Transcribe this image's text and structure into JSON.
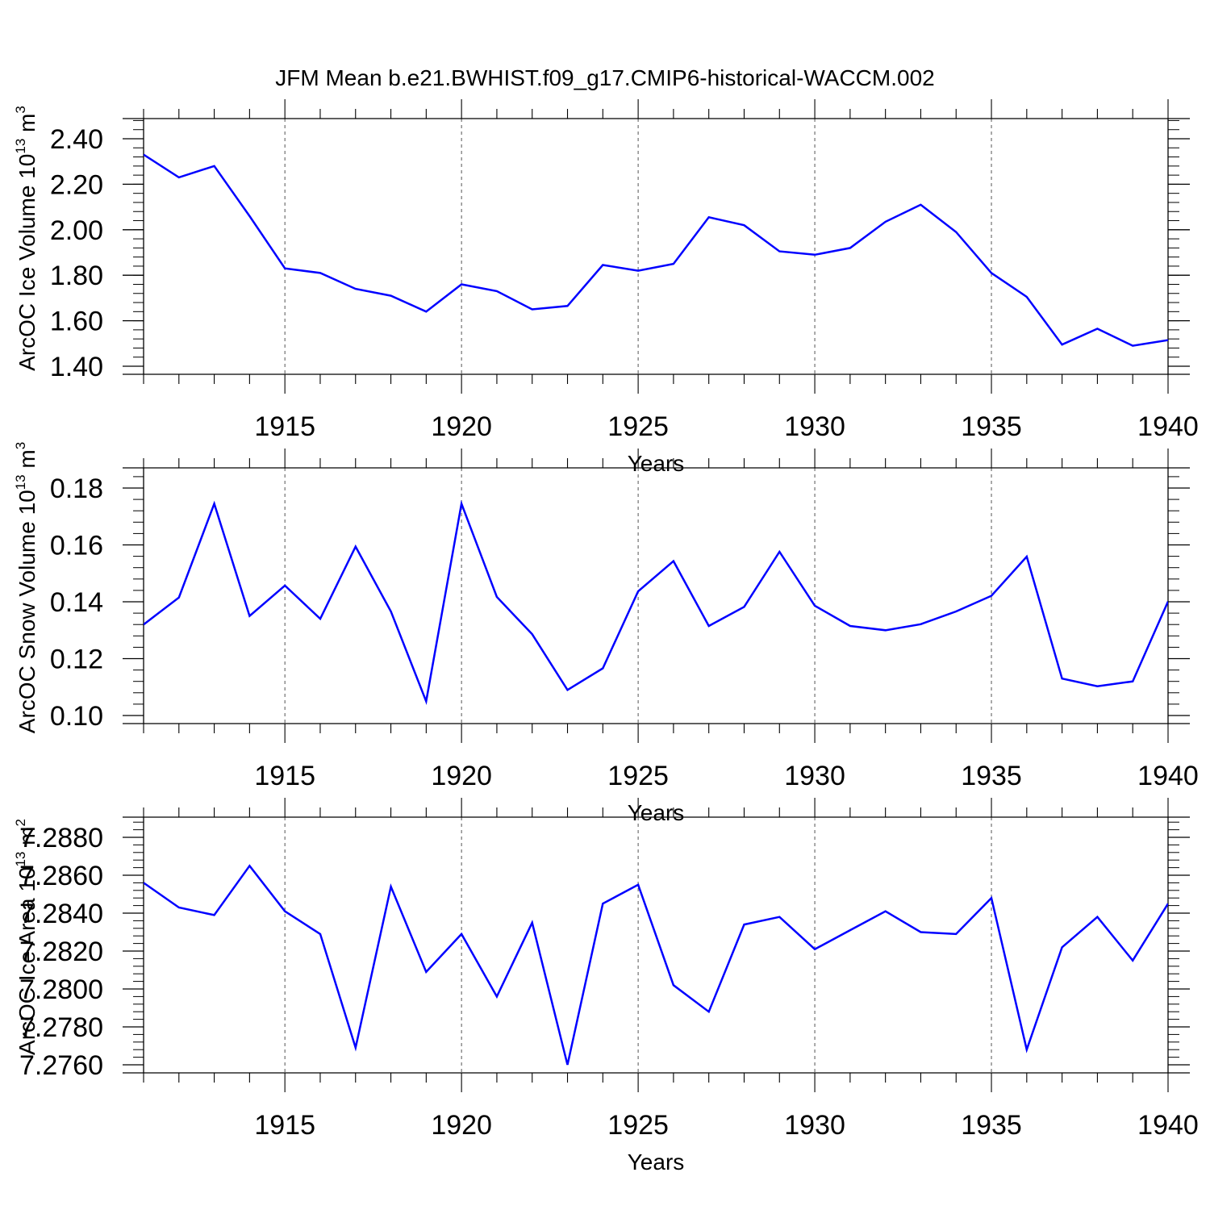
{
  "title": "JFM Mean b.e21.BWHIST.f09_g17.CMIP6-historical-WACCM.002",
  "chart_data": [
    {
      "type": "line",
      "xlabel": "Years",
      "ylabel": "ArcOC Ice Volume 10",
      "ylabel_exp": "13",
      "ylabel_unit": "m",
      "ylabel_unit_exp": "3",
      "xlim": [
        1911,
        1940
      ],
      "ylim": [
        1.4,
        2.4
      ],
      "y_major_ticks": [
        1.4,
        1.6,
        1.8,
        2.0,
        2.2,
        2.4
      ],
      "y_tick_labels": [
        "1.40",
        "1.60",
        "1.80",
        "2.00",
        "2.20",
        "2.40"
      ],
      "x_major_ticks": [
        1915,
        1920,
        1925,
        1930,
        1935,
        1940
      ],
      "x_tick_labels": [
        "1915",
        "1920",
        "1925",
        "1930",
        "1935",
        "1940"
      ],
      "grid": "vertical dashed at major x ticks",
      "line_color": "#0000ff",
      "x": [
        1911,
        1912,
        1913,
        1914,
        1915,
        1916,
        1917,
        1918,
        1919,
        1920,
        1921,
        1922,
        1923,
        1924,
        1925,
        1926,
        1927,
        1928,
        1929,
        1930,
        1931,
        1932,
        1933,
        1934,
        1935,
        1936,
        1937,
        1938,
        1939,
        1940
      ],
      "values": [
        2.33,
        2.23,
        2.28,
        2.06,
        1.83,
        1.81,
        1.74,
        1.71,
        1.64,
        1.76,
        1.73,
        1.65,
        1.665,
        1.845,
        1.82,
        1.85,
        2.055,
        2.02,
        1.905,
        1.89,
        1.92,
        2.035,
        2.11,
        1.99,
        1.81,
        1.705,
        1.495,
        1.565,
        1.49,
        1.515
      ]
    },
    {
      "type": "line",
      "xlabel": "Years",
      "ylabel": "ArcOC Snow Volume 10",
      "ylabel_exp": "13",
      "ylabel_unit": "m",
      "ylabel_unit_exp": "3",
      "xlim": [
        1911,
        1940
      ],
      "ylim": [
        0.1,
        0.18
      ],
      "y_major_ticks": [
        0.1,
        0.12,
        0.14,
        0.16,
        0.18
      ],
      "y_tick_labels": [
        "0.10",
        "0.12",
        "0.14",
        "0.16",
        "0.18"
      ],
      "x_major_ticks": [
        1915,
        1920,
        1925,
        1930,
        1935,
        1940
      ],
      "x_tick_labels": [
        "1915",
        "1920",
        "1925",
        "1930",
        "1935",
        "1940"
      ],
      "grid": "vertical dashed at major x ticks",
      "line_color": "#0000ff",
      "x": [
        1911,
        1912,
        1913,
        1914,
        1915,
        1916,
        1917,
        1918,
        1919,
        1920,
        1921,
        1922,
        1923,
        1924,
        1925,
        1926,
        1927,
        1928,
        1929,
        1930,
        1931,
        1932,
        1933,
        1934,
        1935,
        1936,
        1937,
        1938,
        1939,
        1940
      ],
      "values": [
        0.132,
        0.1415,
        0.1745,
        0.135,
        0.1457,
        0.134,
        0.1594,
        0.1366,
        0.105,
        0.1745,
        0.1417,
        0.1286,
        0.109,
        0.1166,
        0.1437,
        0.1543,
        0.1315,
        0.1382,
        0.1576,
        0.1386,
        0.1315,
        0.13,
        0.1321,
        0.1366,
        0.1421,
        0.1559,
        0.113,
        0.1103,
        0.112,
        0.1401
      ]
    },
    {
      "type": "line",
      "xlabel": "Years",
      "ylabel": "ArcOC Ice Area 10",
      "ylabel_exp": "13",
      "ylabel_unit": "m",
      "ylabel_unit_exp": "2",
      "xlim": [
        1911,
        1940
      ],
      "ylim": [
        7.276,
        7.288
      ],
      "y_major_ticks": [
        7.276,
        7.278,
        7.28,
        7.282,
        7.284,
        7.286,
        7.288
      ],
      "y_tick_labels": [
        "7.2760",
        "7.2780",
        "7.2800",
        "7.2820",
        "7.2840",
        "7.2860",
        "7.2880"
      ],
      "x_major_ticks": [
        1915,
        1920,
        1925,
        1930,
        1935,
        1940
      ],
      "x_tick_labels": [
        "1915",
        "1920",
        "1925",
        "1930",
        "1935",
        "1940"
      ],
      "grid": "vertical dashed at major x ticks",
      "line_color": "#0000ff",
      "x": [
        1911,
        1912,
        1913,
        1914,
        1915,
        1916,
        1917,
        1918,
        1919,
        1920,
        1921,
        1922,
        1923,
        1924,
        1925,
        1926,
        1927,
        1928,
        1929,
        1930,
        1931,
        1932,
        1933,
        1934,
        1935,
        1936,
        1937,
        1938,
        1939,
        1940
      ],
      "values": [
        7.2856,
        7.2843,
        7.2839,
        7.2865,
        7.2841,
        7.2829,
        7.2769,
        7.2854,
        7.2809,
        7.2829,
        7.2796,
        7.2835,
        7.276,
        7.2845,
        7.2855,
        7.2802,
        7.2788,
        7.2834,
        7.2838,
        7.2821,
        7.2831,
        7.2841,
        7.283,
        7.2829,
        7.2848,
        7.2768,
        7.2822,
        7.2838,
        7.2815,
        7.2845
      ]
    }
  ]
}
